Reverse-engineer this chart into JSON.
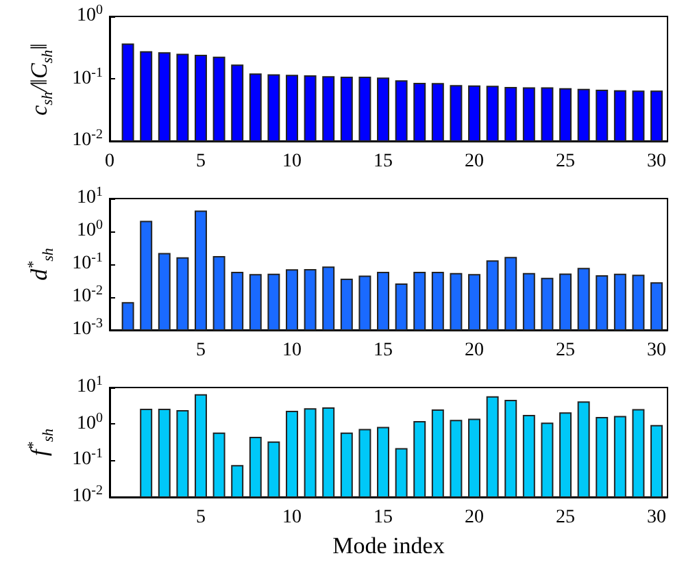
{
  "chart_data": [
    {
      "type": "bar",
      "ylabel": "c$_{sh}$/‖C$_{sh}$‖",
      "x": [
        1,
        2,
        3,
        4,
        5,
        6,
        7,
        8,
        9,
        10,
        11,
        12,
        13,
        14,
        15,
        16,
        17,
        18,
        19,
        20,
        21,
        22,
        23,
        24,
        25,
        26,
        27,
        28,
        29,
        30
      ],
      "series": [
        {
          "color": "#0000ff",
          "values": [
            0.36,
            0.27,
            0.26,
            0.245,
            0.236,
            0.22,
            0.165,
            0.119,
            0.115,
            0.113,
            0.111,
            0.107,
            0.105,
            0.105,
            0.102,
            0.092,
            0.084,
            0.083,
            0.077,
            0.076,
            0.075,
            0.072,
            0.071,
            0.071,
            0.069,
            0.067,
            0.065,
            0.064,
            0.063,
            0.063
          ]
        }
      ],
      "log": "y",
      "ylim": [
        0.01,
        1
      ],
      "yticks": [
        {
          "value": 0.01,
          "label": "10$^{-2}$"
        },
        {
          "value": 0.1,
          "label": "10$^{-1}$"
        },
        {
          "value": 1,
          "label": "10$^{0}$"
        }
      ],
      "xlim": [
        0,
        30.6
      ],
      "xticks": [
        0,
        5,
        10,
        15,
        20,
        25,
        30
      ],
      "grid": false
    },
    {
      "type": "bar",
      "ylabel": "d$^{*}$$_{sh}$",
      "x": [
        1,
        2,
        3,
        4,
        5,
        6,
        7,
        8,
        9,
        10,
        11,
        12,
        13,
        14,
        15,
        16,
        17,
        18,
        19,
        20,
        21,
        22,
        23,
        24,
        25,
        26,
        27,
        28,
        29,
        30
      ],
      "series": [
        {
          "color": "#1a6aff",
          "values": [
            0.0067,
            2.0,
            0.21,
            0.155,
            4.1,
            0.17,
            0.056,
            0.048,
            0.049,
            0.067,
            0.068,
            0.082,
            0.035,
            0.043,
            0.056,
            0.025,
            0.056,
            0.056,
            0.052,
            0.048,
            0.126,
            0.16,
            0.052,
            0.037,
            0.05,
            0.074,
            0.044,
            0.049,
            0.046,
            0.027
          ]
        }
      ],
      "log": "y",
      "ylim": [
        0.001,
        10
      ],
      "yticks": [
        {
          "value": 0.001,
          "label": "10$^{-3}$"
        },
        {
          "value": 0.01,
          "label": "10$^{-2}$"
        },
        {
          "value": 0.1,
          "label": "10$^{-1}$"
        },
        {
          "value": 1,
          "label": "10$^{0}$"
        },
        {
          "value": 10,
          "label": "10$^{1}$"
        }
      ],
      "xlim": [
        0,
        30.6
      ],
      "xticks": [
        5,
        10,
        15,
        20,
        25,
        30
      ],
      "grid": false
    },
    {
      "type": "bar",
      "ylabel": "f$^{*}$$_{sh}$",
      "xlabel": "Mode index",
      "series": [
        {
          "color": "#00c8f8",
          "x": [
            2,
            3,
            4,
            5,
            6,
            7,
            8,
            9,
            10,
            11,
            12,
            13,
            14,
            15,
            16,
            17,
            18,
            19,
            20,
            21,
            22,
            23,
            24,
            25,
            26,
            27,
            28,
            29,
            30
          ],
          "values": [
            2.5,
            2.5,
            2.3,
            6.3,
            0.56,
            0.072,
            0.43,
            0.32,
            2.2,
            2.6,
            2.75,
            0.56,
            0.7,
            0.8,
            0.21,
            1.15,
            2.4,
            1.25,
            1.35,
            5.5,
            4.4,
            1.7,
            1.05,
            2.0,
            4.0,
            1.5,
            1.6,
            2.45,
            0.9
          ]
        }
      ],
      "log": "y",
      "ylim": [
        0.01,
        10
      ],
      "yticks": [
        {
          "value": 0.01,
          "label": "10$^{-2}$"
        },
        {
          "value": 0.1,
          "label": "10$^{-1}$"
        },
        {
          "value": 1,
          "label": "10$^{0}$"
        },
        {
          "value": 10,
          "label": "10$^{1}$"
        }
      ],
      "xlim": [
        0,
        30.6
      ],
      "xticks": [
        5,
        10,
        15,
        20,
        25,
        30
      ],
      "grid": false
    }
  ]
}
